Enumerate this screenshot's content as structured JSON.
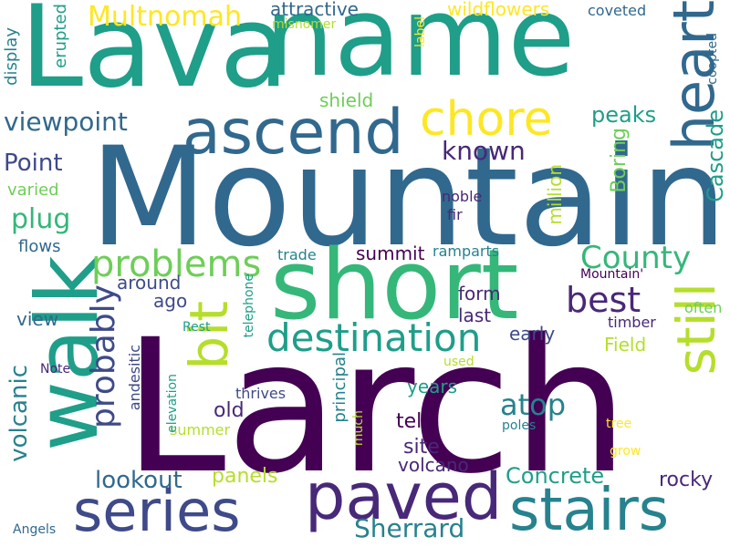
{
  "palette": [
    "#440154",
    "#482878",
    "#3e4a89",
    "#31688e",
    "#26828e",
    "#1f9e89",
    "#35b779",
    "#6ece58",
    "#b5de2b",
    "#fde725"
  ],
  "words": [
    "Lava",
    "name",
    "Mountain",
    "Larch",
    "short",
    "walk",
    "ascend",
    "heart",
    "chore",
    "paved",
    "series",
    "stairs",
    "bit",
    "still",
    "destination",
    "problems",
    "County",
    "best",
    "probably",
    "Multnomah",
    "viewpoint",
    "plug",
    "Point",
    "known",
    "Cascade",
    "peaks",
    "Boring",
    "million",
    "atop",
    "volcanic",
    "Sherrard",
    "lookout",
    "Concrete",
    "rocky",
    "panels",
    "volcano",
    "site",
    "tell",
    "years",
    "Field",
    "summit",
    "form",
    "last",
    "early",
    "old",
    "summer",
    "around",
    "ago",
    "view",
    "flows",
    "varied",
    "display",
    "erupted",
    "attractive",
    "wildflowers",
    "coveted",
    "misnomer",
    "label",
    "coopted",
    "shield",
    "noble",
    "fir",
    "ramparts",
    "trade",
    "Mountain'",
    "often",
    "timber",
    "telephone",
    "Rest",
    "elevation",
    "principal",
    "much",
    "used",
    "thrives",
    "andesitic",
    "Note",
    "poles",
    "tree",
    "grow",
    "Angels"
  ]
}
